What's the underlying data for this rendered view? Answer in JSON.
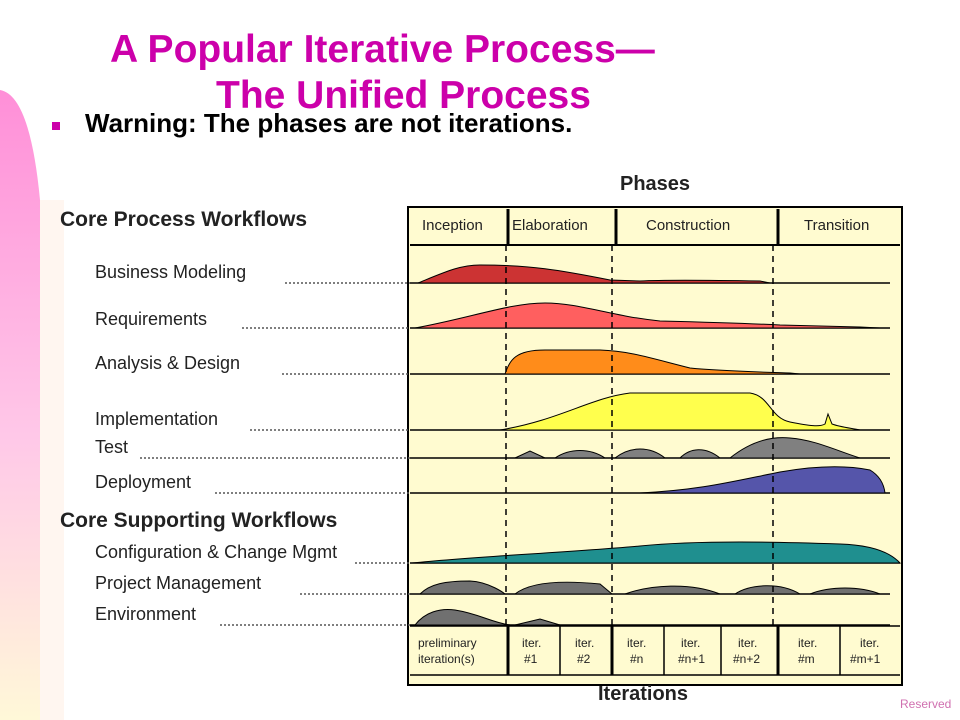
{
  "slide": {
    "title_line1": "A Popular Iterative Process—",
    "title_line2": "The Unified Process",
    "bullet_text": "Warning: The phases are not iterations.",
    "footer_text": "Reserved"
  },
  "diagram": {
    "phases_header": "Phases",
    "iterations_header": "Iterations",
    "phases": [
      "Inception",
      "Elaboration",
      "Construction",
      "Transition"
    ],
    "core_process_heading": "Core Process Workflows",
    "core_supporting_heading": "Core Supporting Workflows",
    "workflows": [
      {
        "label": "Business Modeling",
        "color": "#cc3333"
      },
      {
        "label": "Requirements",
        "color": "#ff5f5f"
      },
      {
        "label": "Analysis & Design",
        "color": "#ff8c1a"
      },
      {
        "label": "Implementation",
        "color": "#ffff4d"
      },
      {
        "label": "Test",
        "color": "#808080"
      },
      {
        "label": "Deployment",
        "color": "#5555aa"
      },
      {
        "label": "Configuration & Change Mgmt",
        "color": "#1f8f8f"
      },
      {
        "label": "Project Management",
        "color": "#707070"
      },
      {
        "label": "Environment",
        "color": "#707070"
      }
    ],
    "iterations": [
      [
        "preliminary",
        "iteration(s)"
      ],
      [
        "iter.",
        "#1"
      ],
      [
        "iter.",
        "#2"
      ],
      [
        "iter.",
        "#n"
      ],
      [
        "iter.",
        "#n+1"
      ],
      [
        "iter.",
        "#n+2"
      ],
      [
        "iter.",
        "#m"
      ],
      [
        "iter.",
        "#m+1"
      ]
    ],
    "chart_bg_color": "#fffbd0",
    "sidebar_color": "#ff99dd"
  }
}
